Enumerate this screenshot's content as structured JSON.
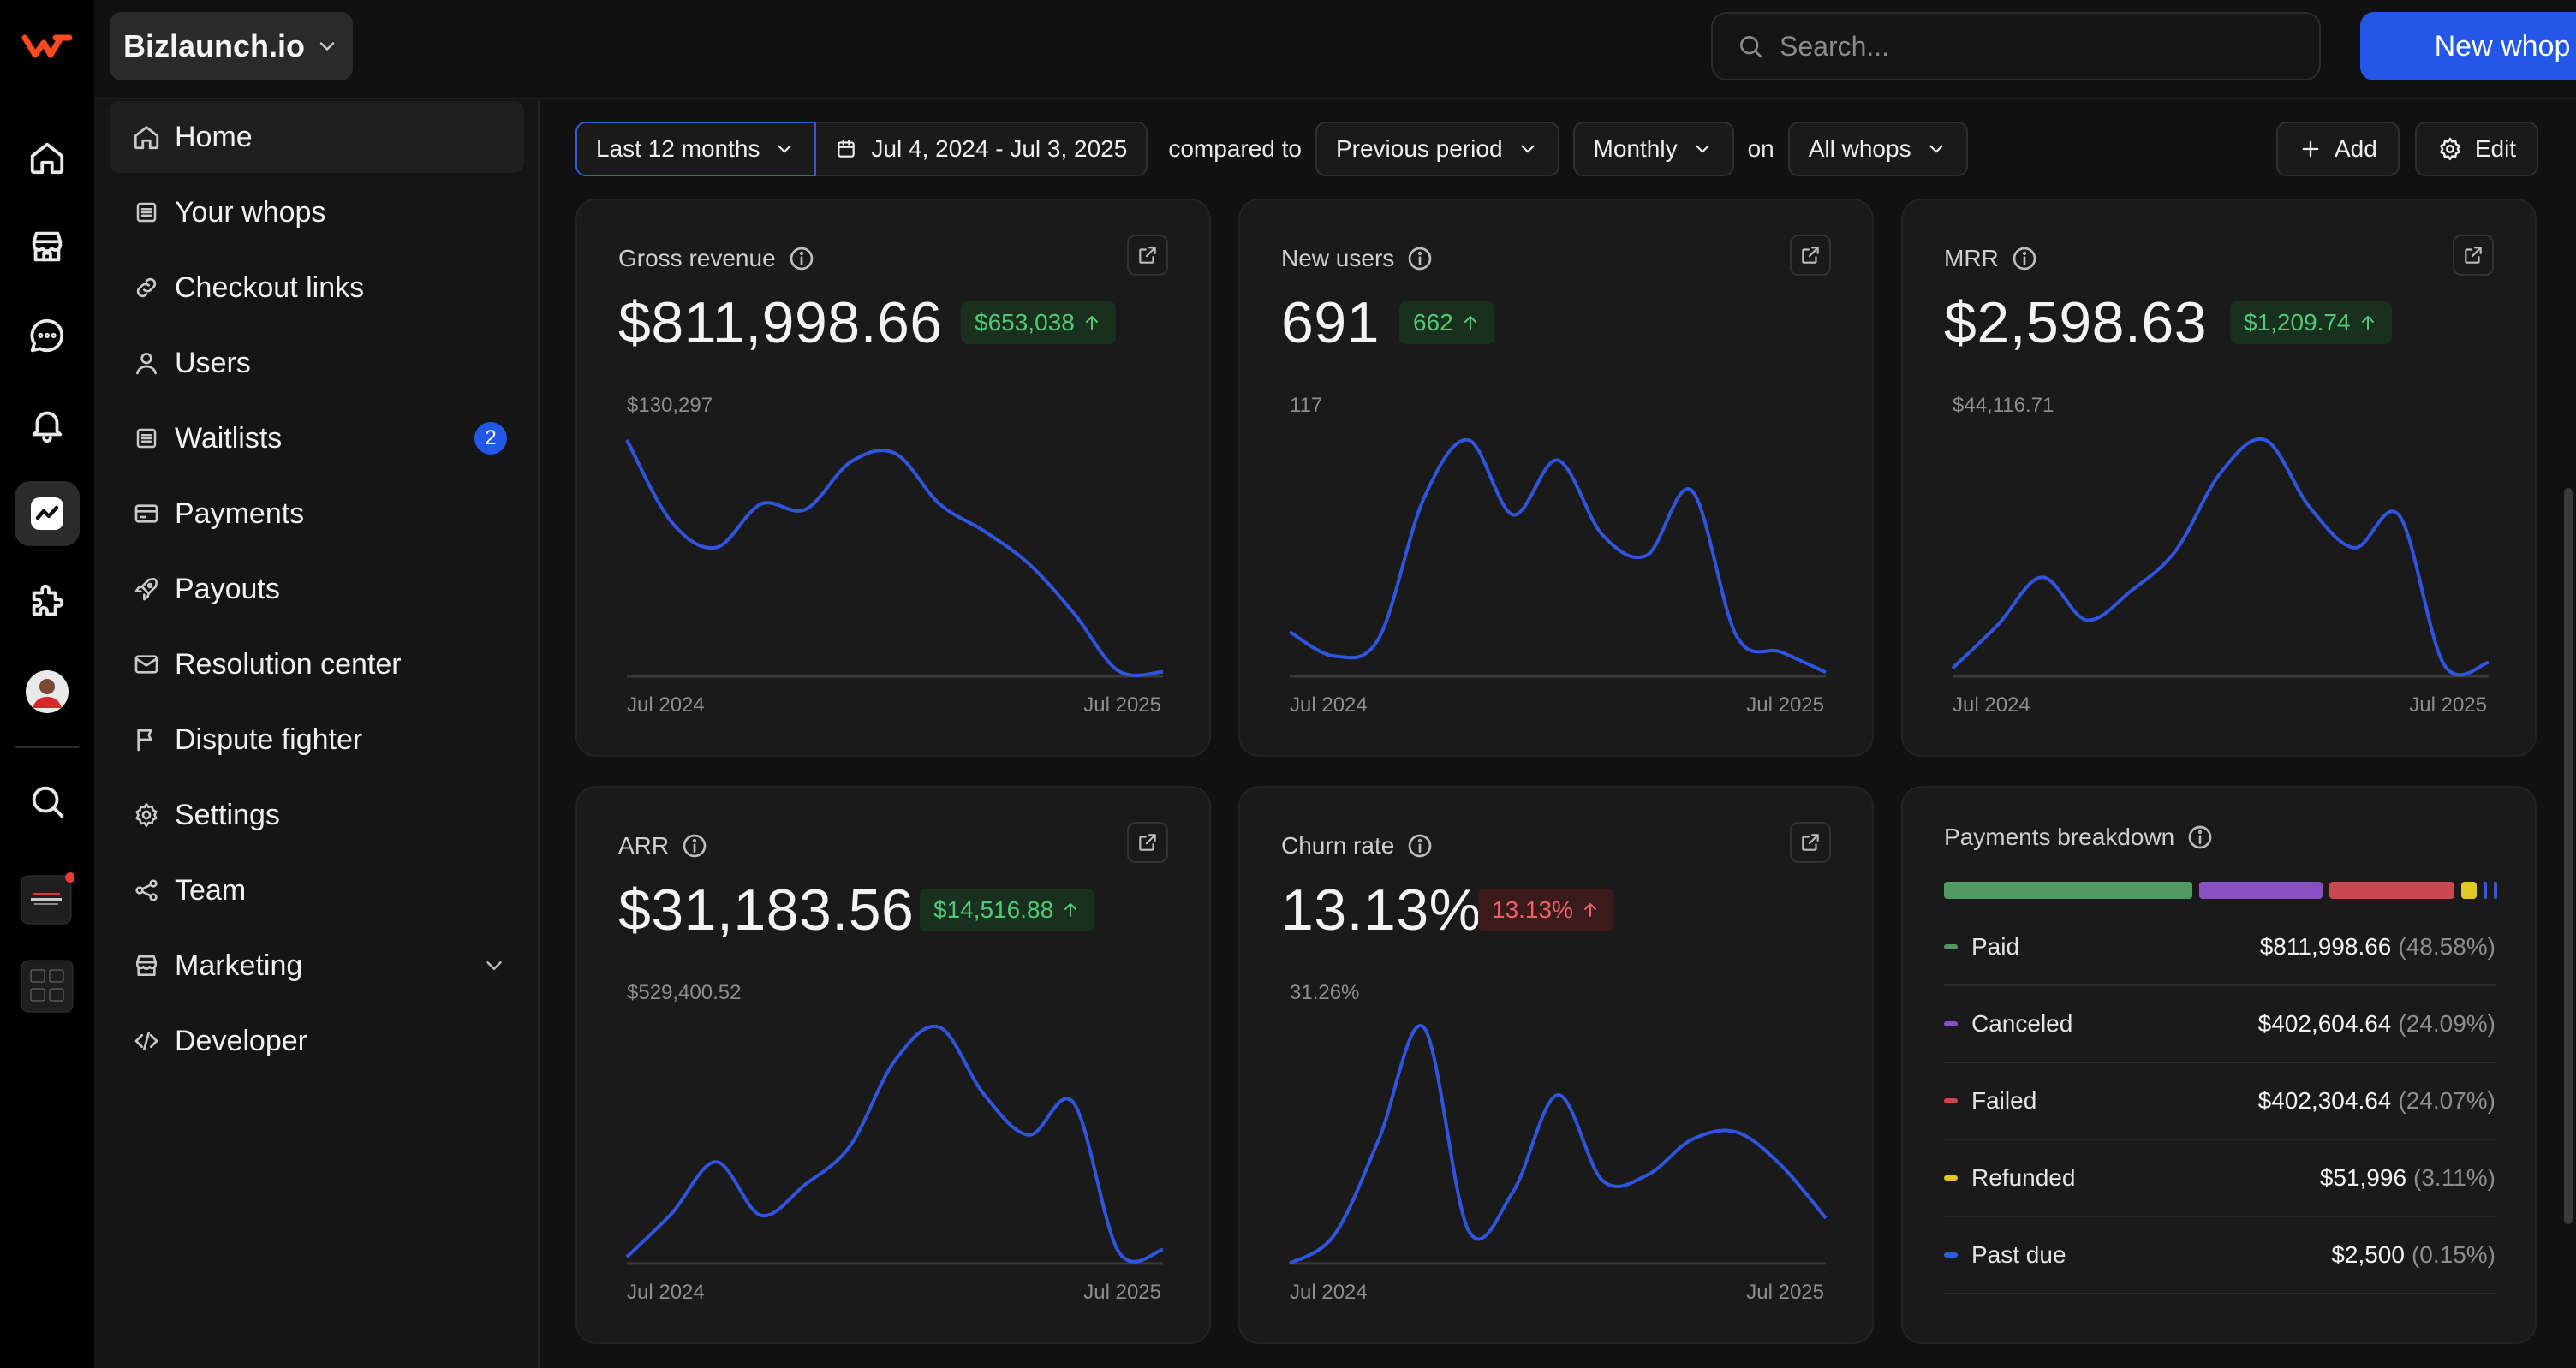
{
  "workspace": {
    "name": "Bizlaunch.io"
  },
  "search": {
    "placeholder": "Search..."
  },
  "header": {
    "new_button": "New whop"
  },
  "sidebar": {
    "items": [
      {
        "label": "Home"
      },
      {
        "label": "Your whops"
      },
      {
        "label": "Checkout links"
      },
      {
        "label": "Users"
      },
      {
        "label": "Waitlists",
        "badge": "2"
      },
      {
        "label": "Payments"
      },
      {
        "label": "Payouts"
      },
      {
        "label": "Resolution center"
      },
      {
        "label": "Dispute fighter"
      },
      {
        "label": "Settings"
      },
      {
        "label": "Team"
      },
      {
        "label": "Marketing"
      },
      {
        "label": "Developer"
      }
    ]
  },
  "filters": {
    "range": "Last 12 months",
    "dates": "Jul 4, 2024 - Jul 3, 2025",
    "compared_to": "compared to",
    "comparison": "Previous period",
    "interval": "Monthly",
    "on": "on",
    "scope": "All whops",
    "add": "Add",
    "edit": "Edit"
  },
  "cards": {
    "gross_revenue": {
      "title": "Gross revenue",
      "value": "$811,998.66",
      "delta": "$653,038",
      "max": "$130,297",
      "x_start": "Jul 2024",
      "x_end": "Jul 2025"
    },
    "new_users": {
      "title": "New users",
      "value": "691",
      "delta": "662",
      "max": "117",
      "x_start": "Jul 2024",
      "x_end": "Jul 2025"
    },
    "mrr": {
      "title": "MRR",
      "value": "$2,598.63",
      "delta": "$1,209.74",
      "max": "$44,116.71",
      "x_start": "Jul 2024",
      "x_end": "Jul 2025"
    },
    "arr": {
      "title": "ARR",
      "value": "$31,183.56",
      "delta": "$14,516.88",
      "max": "$529,400.52",
      "x_start": "Jul 2024",
      "x_end": "Jul 2025"
    },
    "churn": {
      "title": "Churn rate",
      "value": "13.13%",
      "delta": "13.13%",
      "max": "31.26%",
      "x_start": "Jul 2024",
      "x_end": "Jul 2025"
    }
  },
  "payments_breakdown": {
    "title": "Payments breakdown",
    "rows": [
      {
        "label": "Paid",
        "amount": "$811,998.66",
        "pct": "(48.58%)",
        "color": "#4f9a63"
      },
      {
        "label": "Canceled",
        "amount": "$402,604.64",
        "pct": "(24.09%)",
        "color": "#8b4fc6"
      },
      {
        "label": "Failed",
        "amount": "$402,304.64",
        "pct": "(24.07%)",
        "color": "#c84a4e"
      },
      {
        "label": "Refunded",
        "amount": "$51,996",
        "pct": "(3.11%)",
        "color": "#e0c828"
      },
      {
        "label": "Past due",
        "amount": "$2,500",
        "pct": "(0.15%)",
        "color": "#2f5bd6"
      }
    ]
  },
  "colors": {
    "accent": "#2357e8",
    "line": "#2f55e0",
    "positive": "#52c878",
    "negative": "#ea6167"
  },
  "chart_data": [
    {
      "type": "line",
      "title": "Gross revenue",
      "x_range": [
        "Jul 2024",
        "Jul 2025"
      ],
      "y_max": 130297,
      "series": [
        {
          "values": [
            130297,
            85000,
            71000,
            95000,
            92000,
            118000,
            123000,
            95000,
            80000,
            62000,
            35000,
            3000,
            2500
          ]
        }
      ]
    },
    {
      "type": "line",
      "title": "New users",
      "x_range": [
        "Jul 2024",
        "Jul 2025"
      ],
      "y_max": 117,
      "series": [
        {
          "values": [
            22,
            10,
            19,
            88,
            117,
            80,
            107,
            70,
            60,
            92,
            20,
            12,
            2
          ]
        }
      ]
    },
    {
      "type": "line",
      "title": "MRR",
      "x_range": [
        "Jul 2024",
        "Jul 2025"
      ],
      "y_max": 44116.71,
      "series": [
        {
          "values": [
            1500,
            9500,
            18500,
            10500,
            16000,
            23500,
            38000,
            44116.71,
            31500,
            24000,
            30000,
            2200,
            2598.63
          ]
        }
      ]
    },
    {
      "type": "line",
      "title": "ARR",
      "x_range": [
        "Jul 2024",
        "Jul 2025"
      ],
      "y_max": 529400.52,
      "series": [
        {
          "values": [
            15000,
            112000,
            228000,
            108000,
            178000,
            264000,
            455000,
            529400.52,
            378000,
            288000,
            360000,
            28000,
            31183.56
          ]
        }
      ]
    },
    {
      "type": "line",
      "title": "Churn rate",
      "x_range": [
        "Jul 2024",
        "Jul 2025"
      ],
      "y_max": 31.26,
      "series": [
        {
          "values": [
            0,
            3.8,
            16.5,
            31.26,
            4.4,
            9.5,
            22.3,
            11.0,
            11.7,
            16.4,
            17.4,
            13.0,
            6.0
          ]
        }
      ]
    }
  ]
}
